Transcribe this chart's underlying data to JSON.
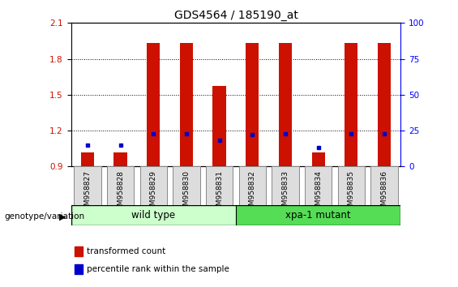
{
  "title": "GDS4564 / 185190_at",
  "samples": [
    "GSM958827",
    "GSM958828",
    "GSM958829",
    "GSM958830",
    "GSM958831",
    "GSM958832",
    "GSM958833",
    "GSM958834",
    "GSM958835",
    "GSM958836"
  ],
  "transformed_count": [
    1.02,
    1.02,
    1.93,
    1.93,
    1.57,
    1.93,
    1.93,
    1.02,
    1.93,
    1.93
  ],
  "percentile_rank": [
    15,
    15,
    23,
    23,
    18,
    22,
    23,
    13,
    23,
    23
  ],
  "base_value": 0.9,
  "ylim_left": [
    0.9,
    2.1
  ],
  "ylim_right": [
    0,
    100
  ],
  "yticks_left": [
    0.9,
    1.2,
    1.5,
    1.8,
    2.1
  ],
  "yticks_right": [
    0,
    25,
    50,
    75,
    100
  ],
  "bar_color": "#CC1100",
  "dot_color": "#0000CC",
  "group1_label": "wild type",
  "group2_label": "xpa-1 mutant",
  "group1_color": "#CCFFCC",
  "group2_color": "#55DD55",
  "legend_bar_label": "transformed count",
  "legend_dot_label": "percentile rank within the sample",
  "genotype_label": "genotype/variation",
  "background_color": "#FFFFFF",
  "title_fontsize": 10,
  "tick_fontsize": 7.5,
  "bar_width": 0.4,
  "gridline_values": [
    1.2,
    1.5,
    1.8
  ]
}
